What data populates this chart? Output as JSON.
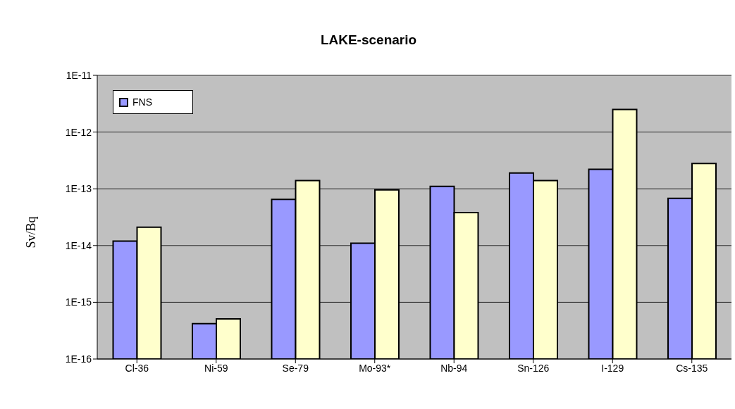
{
  "chart_data": {
    "type": "bar",
    "title": "LAKE-scenario",
    "ylabel": "Sv/Bq",
    "categories": [
      "Cl-36",
      "Ni-59",
      "Se-79",
      "Mo-93*",
      "Nb-94",
      "Sn-126",
      "I-129",
      "Cs-135"
    ],
    "series": [
      {
        "name": "FNS",
        "color": "#9999ff",
        "values": [
          1.2e-14,
          4.2e-16,
          6.5e-14,
          1.1e-14,
          1.1e-13,
          1.9e-13,
          2.2e-13,
          6.8e-14
        ]
      },
      {
        "color": "#ffffcc",
        "values": [
          2.1e-14,
          5.1e-16,
          1.4e-13,
          9.6e-14,
          3.8e-14,
          1.4e-13,
          2.5e-12,
          2.8e-13
        ]
      }
    ],
    "log": "y",
    "ylim": [
      1e-16,
      1e-11
    ],
    "yticks": [
      {
        "value": 1e-16,
        "label": "1E-16"
      },
      {
        "value": 1e-15,
        "label": "1E-15"
      },
      {
        "value": 1e-14,
        "label": "1E-14"
      },
      {
        "value": 1e-13,
        "label": "1E-13"
      },
      {
        "value": 1e-12,
        "label": "1E-12"
      },
      {
        "value": 1e-11,
        "label": "1E-11"
      }
    ],
    "grid": "y",
    "legend": "top left"
  }
}
